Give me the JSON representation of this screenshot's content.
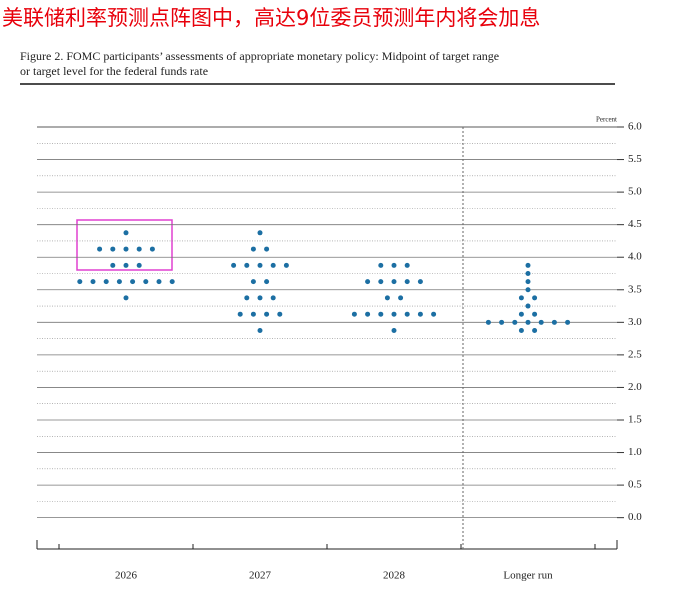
{
  "header": "美联储利率预测点阵图中，高达9位委员预测年内将会加息",
  "chart_data": {
    "type": "dot",
    "title": [
      "Figure 2. FOMC participants’ assessments of appropriate monetary policy: Midpoint of target range",
      "or target level for the federal funds rate"
    ],
    "y_label": "Percent",
    "categories": [
      "2026",
      "2027",
      "2028",
      "Longer run"
    ],
    "color": "#1c6fa3",
    "dots": [
      [
        {
          "value": 4.375,
          "count": 1
        },
        {
          "value": 4.125,
          "count": 5
        },
        {
          "value": 3.875,
          "count": 3
        },
        {
          "value": 3.625,
          "count": 8
        },
        {
          "value": 3.375,
          "count": 1
        }
      ],
      [
        {
          "value": 4.375,
          "count": 1
        },
        {
          "value": 4.125,
          "count": 2
        },
        {
          "value": 3.875,
          "count": 5
        },
        {
          "value": 3.625,
          "count": 2
        },
        {
          "value": 3.375,
          "count": 3
        },
        {
          "value": 3.125,
          "count": 4
        },
        {
          "value": 2.875,
          "count": 1
        }
      ],
      [
        {
          "value": 3.875,
          "count": 3
        },
        {
          "value": 3.625,
          "count": 5
        },
        {
          "value": 3.375,
          "count": 2
        },
        {
          "value": 3.125,
          "count": 7
        },
        {
          "value": 2.875,
          "count": 1
        }
      ],
      [
        {
          "value": 3.875,
          "count": 1
        },
        {
          "value": 3.75,
          "count": 1
        },
        {
          "value": 3.625,
          "count": 1
        },
        {
          "value": 3.5,
          "count": 1
        },
        {
          "value": 3.375,
          "count": 2
        },
        {
          "value": 3.25,
          "count": 1
        },
        {
          "value": 3.125,
          "count": 2
        },
        {
          "value": 3.0,
          "count": 7
        },
        {
          "value": 2.875,
          "count": 2
        }
      ]
    ],
    "ylim": [
      -0.42,
      6.0
    ],
    "yticks": [
      {
        "value": 0,
        "label": "0.0"
      },
      {
        "value": 0.5,
        "label": "0.5"
      },
      {
        "value": 1,
        "label": "1.0"
      },
      {
        "value": 1.5,
        "label": "1.5"
      },
      {
        "value": 2,
        "label": "2.0"
      },
      {
        "value": 2.5,
        "label": "2.5"
      },
      {
        "value": 3,
        "label": "3.0"
      },
      {
        "value": 3.5,
        "label": "3.5"
      },
      {
        "value": 4,
        "label": "4.0"
      },
      {
        "value": 4.5,
        "label": "4.5"
      },
      {
        "value": 5,
        "label": "5.0"
      },
      {
        "value": 5.5,
        "label": "5.5"
      },
      {
        "value": 6,
        "label": "6.0"
      }
    ],
    "grid": true
  }
}
